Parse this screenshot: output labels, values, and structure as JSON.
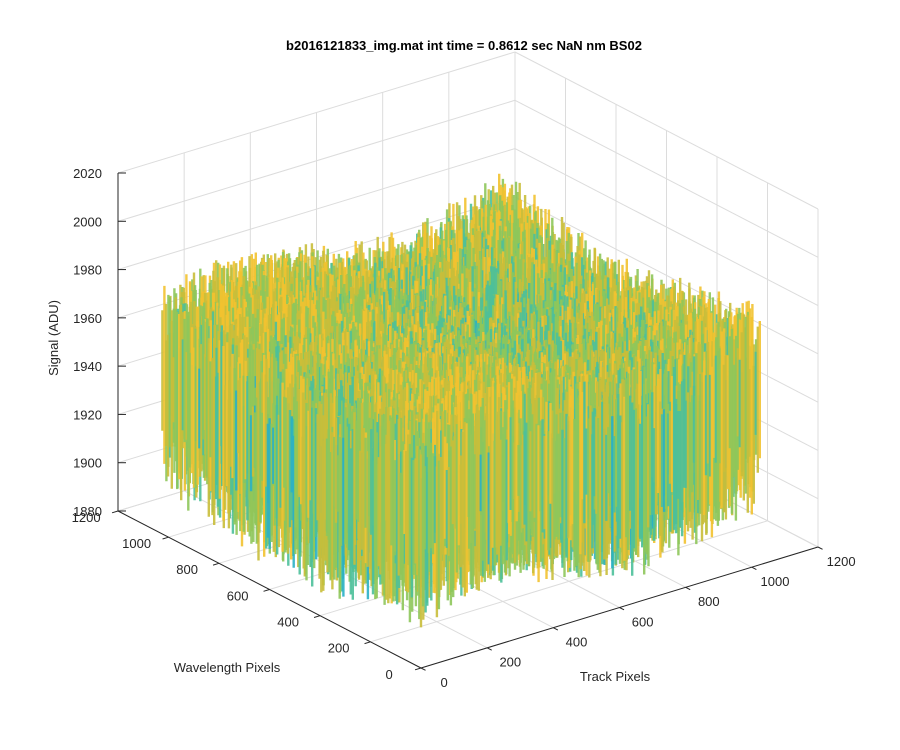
{
  "chart_data": {
    "type": "surface",
    "title": "b2016121833_img.mat int time = 0.8612 sec  NaN nm BS02",
    "xlabel": "Track Pixels",
    "ylabel": "Wavelength Pixels",
    "zlabel": "Signal (ADU)",
    "xlim": [
      0,
      1200
    ],
    "ylim": [
      0,
      1200
    ],
    "zlim": [
      1880,
      2020
    ],
    "x_ticks": [
      "0",
      "200",
      "400",
      "600",
      "800",
      "1000",
      "1200"
    ],
    "y_ticks": [
      "0",
      "200",
      "400",
      "600",
      "800",
      "1000",
      "1200"
    ],
    "z_ticks": [
      "1880",
      "1900",
      "1920",
      "1940",
      "1960",
      "1980",
      "2000",
      "2020"
    ],
    "grid": true,
    "surface_extent": {
      "x": [
        0,
        1024
      ],
      "y": [
        0,
        1024
      ]
    },
    "signal_typical_range": [
      1900,
      1985
    ],
    "colormap": [
      "#0072bd",
      "#1aa0d8",
      "#2ab0c5",
      "#4cc09a",
      "#8ec65b",
      "#c9be3a",
      "#f2c230"
    ]
  }
}
